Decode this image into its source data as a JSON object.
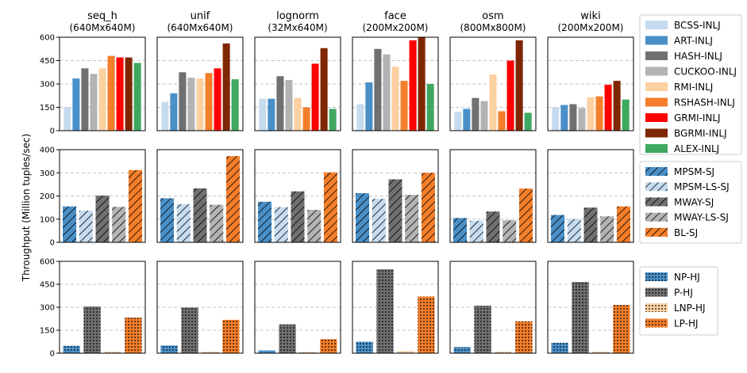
{
  "ylabel": "Throughput (Million tuples/sec)",
  "colors": {
    "BCSS": "#c6dbef",
    "ART": "#4a90c8",
    "HASH": "#707070",
    "CUCKOO": "#b3b3b3",
    "RMI": "#fdd0a2",
    "RSHASH": "#f47e2a",
    "GRMI": "#fe0000",
    "BGRMI": "#7f2704",
    "ALEX": "#3fa860"
  },
  "columns": [
    {
      "name": "seq_h",
      "size": "(640Mx640M)"
    },
    {
      "name": "unif",
      "size": "(640Mx640M)"
    },
    {
      "name": "lognorm",
      "size": "(32Mx640M)"
    },
    {
      "name": "face",
      "size": "(200Mx200M)"
    },
    {
      "name": "osm",
      "size": "(800Mx800M)"
    },
    {
      "name": "wiki",
      "size": "(200Mx200M)"
    }
  ],
  "chart_data": [
    {
      "type": "bar",
      "row": "INLJ",
      "ylim": [
        0,
        600
      ],
      "yticks": [
        "0",
        "150",
        "300",
        "450",
        "600"
      ],
      "series": [
        {
          "name": "BCSS-INLJ",
          "color_key": "BCSS",
          "hatch": "none",
          "values": [
            150,
            185,
            205,
            170,
            120,
            150
          ]
        },
        {
          "name": "ART-INLJ",
          "color_key": "ART",
          "hatch": "none",
          "values": [
            335,
            240,
            205,
            310,
            140,
            165
          ]
        },
        {
          "name": "HASH-INLJ",
          "color_key": "HASH",
          "hatch": "none",
          "values": [
            400,
            375,
            350,
            525,
            210,
            170
          ]
        },
        {
          "name": "CUCKOO-INLJ",
          "color_key": "CUCKOO",
          "hatch": "none",
          "values": [
            365,
            340,
            325,
            490,
            190,
            145
          ]
        },
        {
          "name": "RMI-INLJ",
          "color_key": "RMI",
          "hatch": "none",
          "values": [
            400,
            335,
            210,
            410,
            360,
            215
          ]
        },
        {
          "name": "RSHASH-INLJ",
          "color_key": "RSHASH",
          "hatch": "none",
          "values": [
            480,
            370,
            150,
            320,
            125,
            220
          ]
        },
        {
          "name": "GRMI-INLJ",
          "color_key": "GRMI",
          "hatch": "none",
          "values": [
            470,
            400,
            430,
            580,
            450,
            295
          ]
        },
        {
          "name": "BGRMI-INLJ",
          "color_key": "BGRMI",
          "hatch": "none",
          "values": [
            470,
            560,
            530,
            610,
            580,
            320
          ]
        },
        {
          "name": "ALEX-INLJ",
          "color_key": "ALEX",
          "hatch": "none",
          "values": [
            435,
            330,
            140,
            300,
            115,
            200
          ]
        }
      ]
    },
    {
      "type": "bar",
      "row": "SJ",
      "ylim": [
        0,
        400
      ],
      "yticks": [
        "0",
        "100",
        "200",
        "300",
        "400"
      ],
      "series": [
        {
          "name": "MPSM-SJ",
          "color_key": "ART",
          "hatch": "diag",
          "values": [
            155,
            190,
            175,
            212,
            105,
            118
          ]
        },
        {
          "name": "MPSM-LS-SJ",
          "color_key": "BCSS",
          "hatch": "diag",
          "values": [
            137,
            165,
            152,
            188,
            93,
            100
          ]
        },
        {
          "name": "MWAY-SJ",
          "color_key": "HASH",
          "hatch": "diag",
          "values": [
            202,
            233,
            220,
            272,
            133,
            150
          ]
        },
        {
          "name": "MWAY-LS-SJ",
          "color_key": "CUCKOO",
          "hatch": "diag",
          "values": [
            153,
            162,
            140,
            205,
            95,
            112
          ]
        },
        {
          "name": "BL-SJ",
          "color_key": "RSHASH",
          "hatch": "diag",
          "values": [
            312,
            372,
            302,
            300,
            232,
            155
          ]
        }
      ]
    },
    {
      "type": "bar",
      "row": "HJ",
      "ylim": [
        0,
        600
      ],
      "yticks": [
        "0",
        "150",
        "300",
        "450",
        "600"
      ],
      "series": [
        {
          "name": "NP-HJ",
          "color_key": "ART",
          "hatch": "dots",
          "values": [
            48,
            50,
            18,
            75,
            40,
            68
          ]
        },
        {
          "name": "P-HJ",
          "color_key": "HASH",
          "hatch": "dots",
          "values": [
            305,
            298,
            188,
            548,
            310,
            465
          ]
        },
        {
          "name": "LNP-HJ",
          "color_key": "RMI",
          "hatch": "dots",
          "values": [
            10,
            10,
            8,
            14,
            10,
            10
          ]
        },
        {
          "name": "LP-HJ",
          "color_key": "RSHASH",
          "hatch": "dots",
          "values": [
            232,
            218,
            92,
            370,
            208,
            315
          ]
        }
      ]
    }
  ]
}
